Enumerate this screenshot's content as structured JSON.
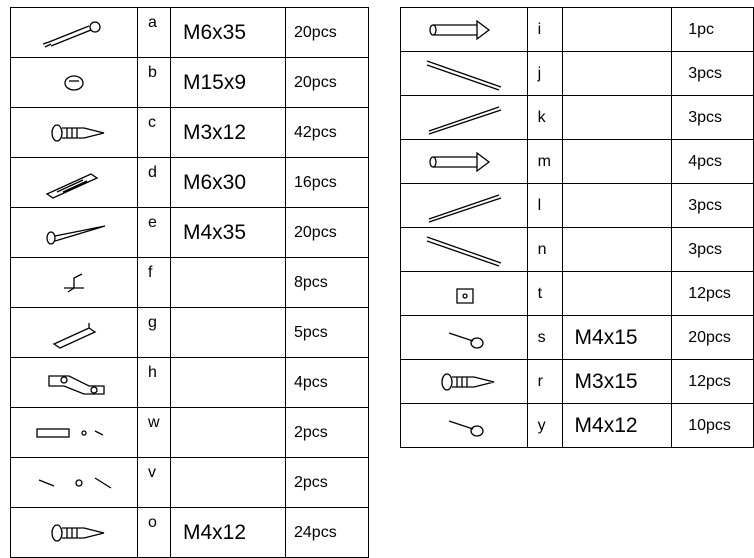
{
  "left_table": {
    "rows": [
      {
        "letter": "a",
        "size": "M6x35",
        "qty": "20pcs"
      },
      {
        "letter": "b",
        "size": "M15x9",
        "qty": "20pcs"
      },
      {
        "letter": "c",
        "size": "M3x12",
        "qty": "42pcs"
      },
      {
        "letter": "d",
        "size": "M6x30",
        "qty": "16pcs"
      },
      {
        "letter": "e",
        "size": "M4x35",
        "qty": "20pcs"
      },
      {
        "letter": "f",
        "qty": "8pcs"
      },
      {
        "letter": "g",
        "qty": "5pcs"
      },
      {
        "letter": "h",
        "qty": "4pcs"
      },
      {
        "letter": "w",
        "qty": "2pcs"
      },
      {
        "letter": "v",
        "qty": "2pcs"
      },
      {
        "letter": "o",
        "size": "M4x12",
        "qty": "24pcs"
      }
    ]
  },
  "right_table": {
    "rows": [
      {
        "letter": "i",
        "qty": "1pc"
      },
      {
        "letter": "j",
        "qty": "3pcs"
      },
      {
        "letter": "k",
        "qty": "3pcs"
      },
      {
        "letter": "m",
        "qty": "4pcs"
      },
      {
        "letter": "l",
        "qty": "3pcs"
      },
      {
        "letter": "n",
        "qty": "3pcs"
      },
      {
        "letter": "t",
        "qty": "12pcs"
      },
      {
        "letter": "s",
        "size": "M4x15",
        "qty": "20pcs"
      },
      {
        "letter": "r",
        "size": "M3x15",
        "qty": "12pcs"
      },
      {
        "letter": "y",
        "size": "M4x12",
        "qty": "10pcs"
      }
    ]
  }
}
